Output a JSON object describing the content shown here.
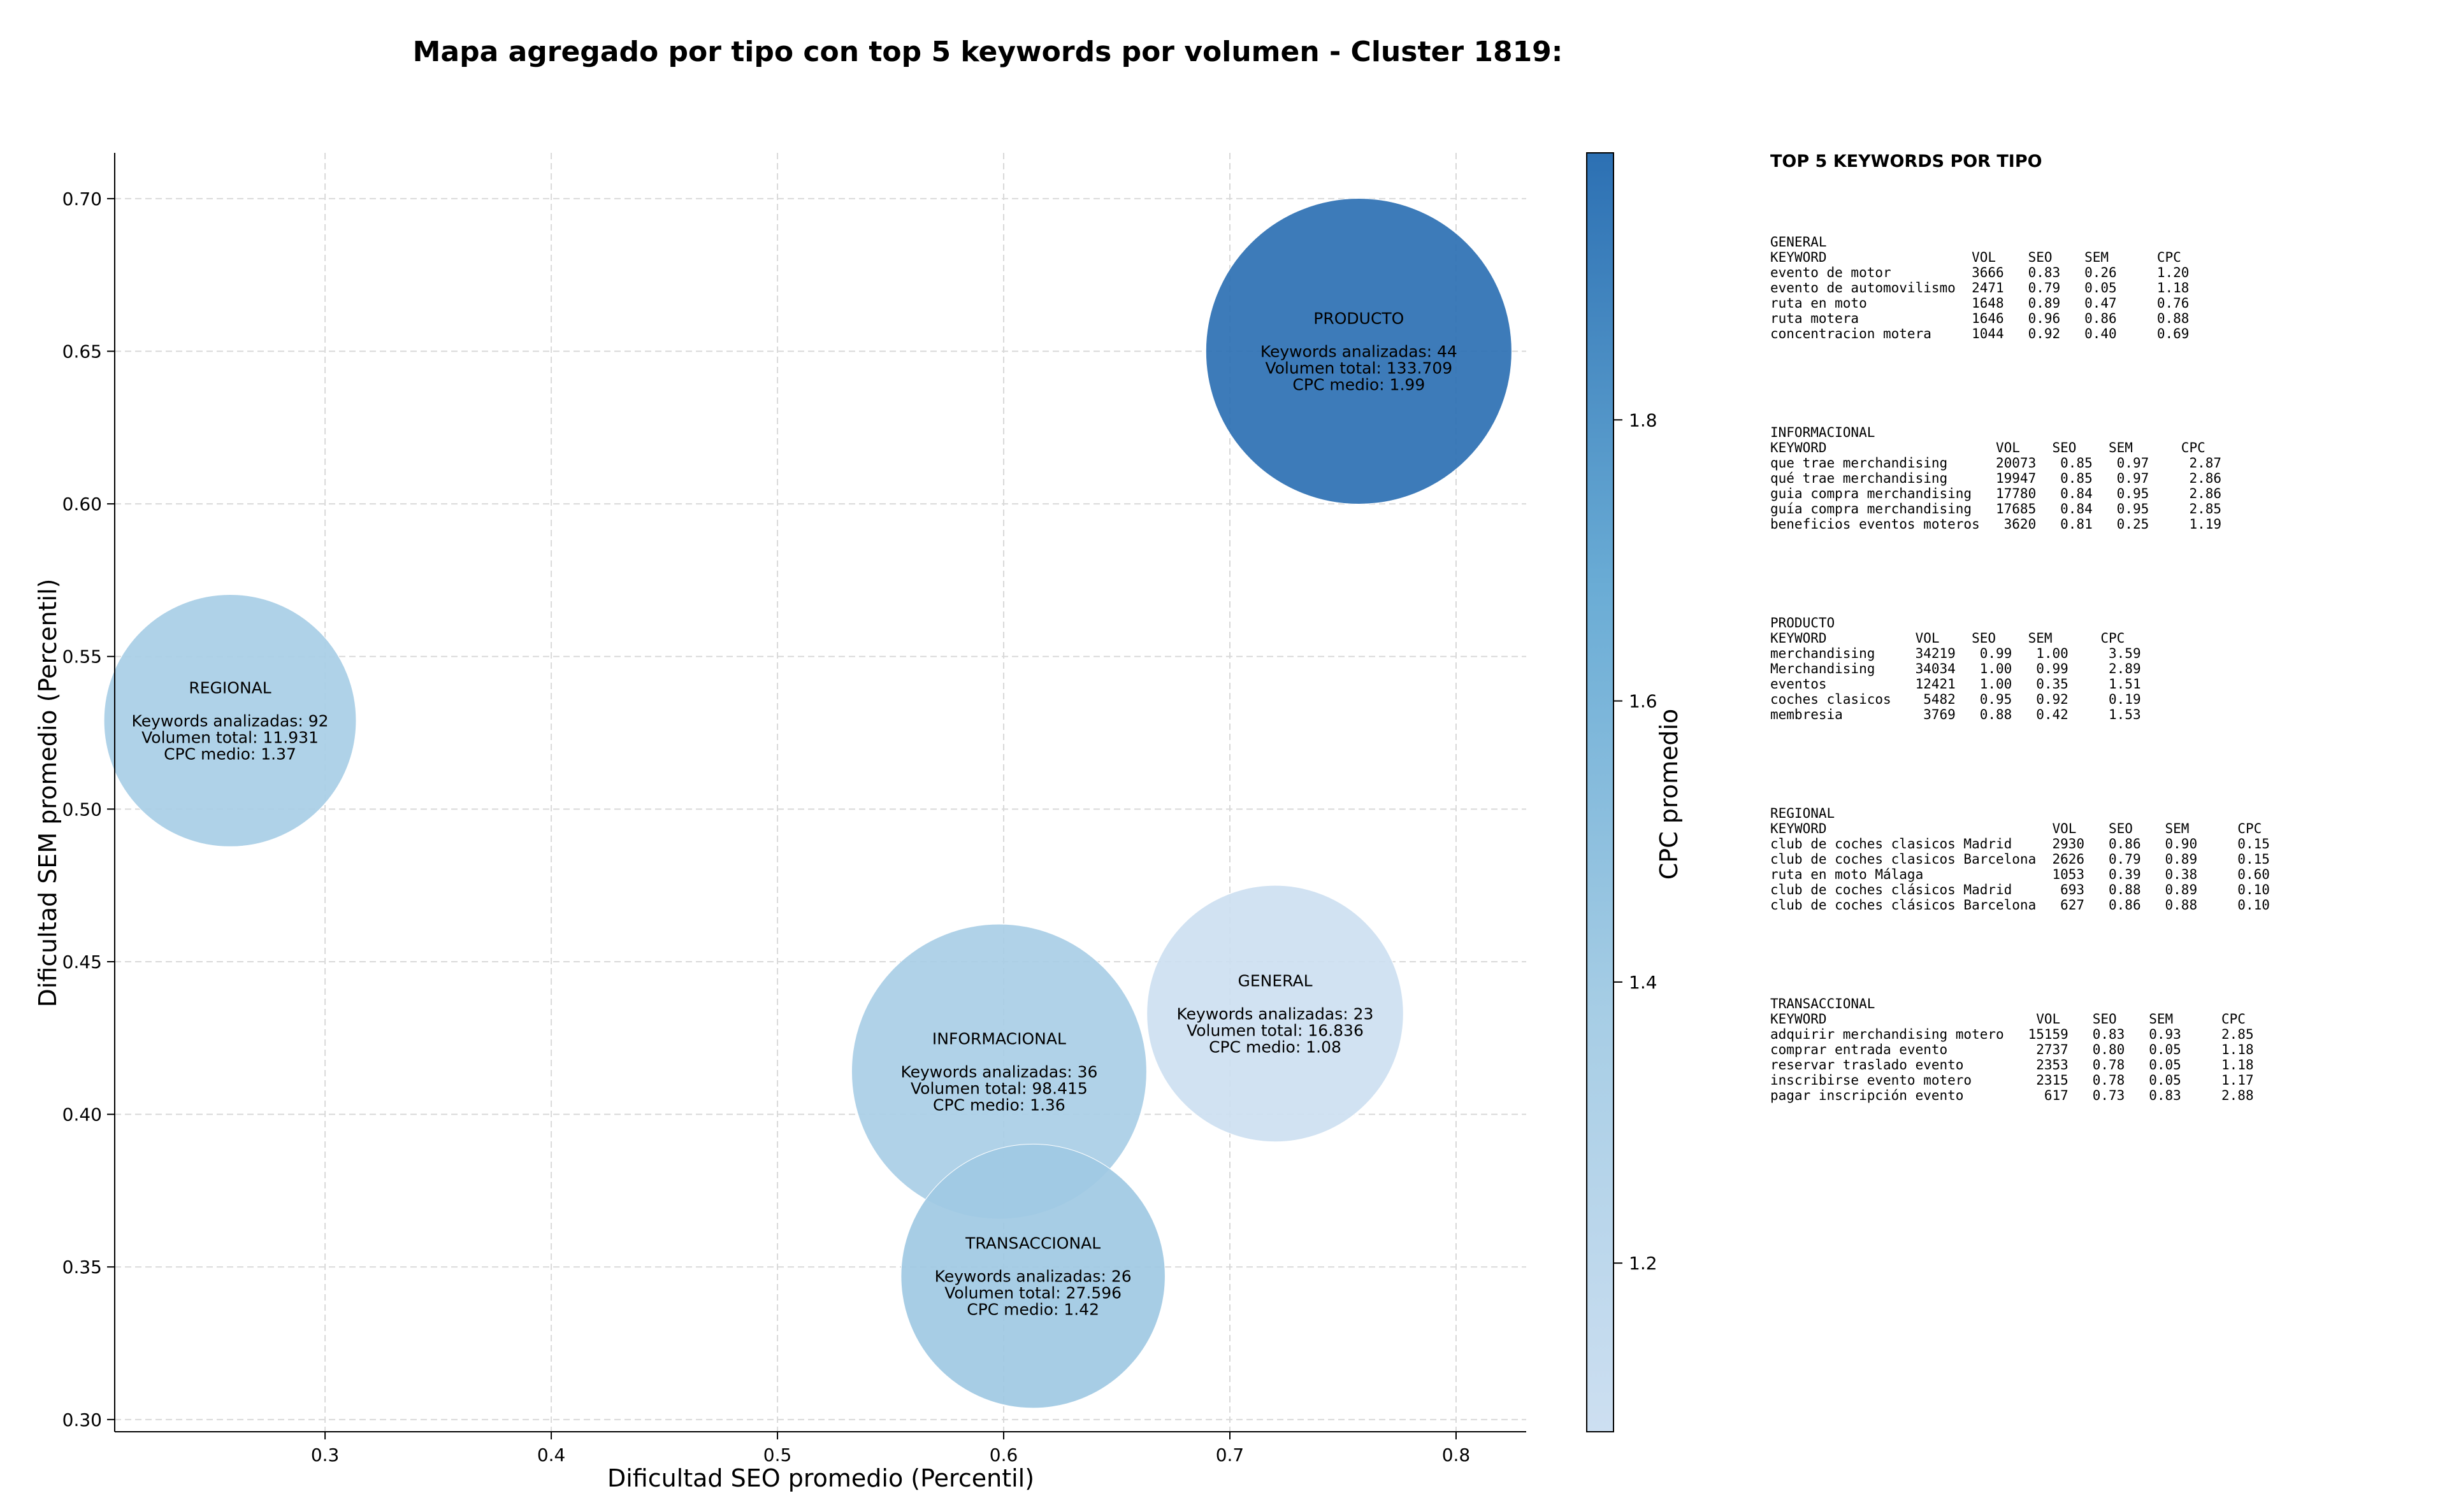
{
  "chart_data": {
    "type": "scatter",
    "title": "Mapa agregado por tipo con top 5 keywords por volumen - Cluster 1819:",
    "xlabel": "Dificultad SEO promedio (Percentil)",
    "ylabel": "Dificultad SEM promedio (Percentil)",
    "colorbar_label": "CPC promedio",
    "xlim": [
      0.207,
      0.831
    ],
    "ylim": [
      0.296,
      0.715
    ],
    "xticks": [
      "0.3",
      "0.4",
      "0.5",
      "0.6",
      "0.7",
      "0.8"
    ],
    "yticks": [
      "0.30",
      "0.35",
      "0.40",
      "0.45",
      "0.50",
      "0.55",
      "0.60",
      "0.65",
      "0.70"
    ],
    "colorbar_range": [
      1.08,
      1.99
    ],
    "colorbar_ticks": [
      "1.2",
      "1.4",
      "1.6",
      "1.8"
    ],
    "grid": true,
    "colormap": [
      "#cddff1",
      "#a6cde5",
      "#6aacd5",
      "#2c70b3"
    ],
    "points": [
      {
        "name": "PRODUCTO",
        "x": 0.757,
        "y": 0.65,
        "volume": 133709,
        "cpc": 1.99,
        "lines": [
          "PRODUCTO",
          "",
          "Keywords analizadas: 44",
          "Volumen total: 133.709",
          "CPC medio: 1.99"
        ]
      },
      {
        "name": "REGIONAL",
        "x": 0.258,
        "y": 0.529,
        "volume": 11931,
        "cpc": 1.37,
        "lines": [
          "REGIONAL",
          "",
          "Keywords analizadas: 92",
          "Volumen total: 11.931",
          "CPC medio: 1.37"
        ]
      },
      {
        "name": "GENERAL",
        "x": 0.72,
        "y": 0.433,
        "volume": 16836,
        "cpc": 1.08,
        "lines": [
          "GENERAL",
          "",
          "Keywords analizadas: 23",
          "Volumen total: 16.836",
          "CPC medio: 1.08"
        ]
      },
      {
        "name": "INFORMACIONAL",
        "x": 0.598,
        "y": 0.414,
        "volume": 98415,
        "cpc": 1.36,
        "lines": [
          "INFORMACIONAL",
          "",
          "Keywords analizadas: 36",
          "Volumen total: 98.415",
          "CPC medio: 1.36"
        ]
      },
      {
        "name": "TRANSACCIONAL",
        "x": 0.613,
        "y": 0.347,
        "volume": 27596,
        "cpc": 1.42,
        "lines": [
          "TRANSACCIONAL",
          "",
          "Keywords analizadas: 26",
          "Volumen total: 27.596",
          "CPC medio: 1.42"
        ]
      }
    ]
  },
  "keywords_panel": {
    "heading": "TOP 5 KEYWORDS POR TIPO",
    "groups": [
      {
        "type": "GENERAL",
        "text": "GENERAL\nKEYWORD                  VOL    SEO    SEM      CPC\nevento de motor          3666   0.83   0.26     1.20\nevento de automovilismo  2471   0.79   0.05     1.18\nruta en moto             1648   0.89   0.47     0.76\nruta motera              1646   0.96   0.86     0.88\nconcentracion motera     1044   0.92   0.40     0.69"
      },
      {
        "type": "INFORMACIONAL",
        "text": "INFORMACIONAL\nKEYWORD                     VOL    SEO    SEM      CPC\nque trae merchandising      20073   0.85   0.97     2.87\nqué trae merchandising      19947   0.85   0.97     2.86\nguia compra merchandising   17780   0.84   0.95     2.86\nguía compra merchandising   17685   0.84   0.95     2.85\nbeneficios eventos moteros   3620   0.81   0.25     1.19"
      },
      {
        "type": "PRODUCTO",
        "text": "PRODUCTO\nKEYWORD           VOL    SEO    SEM      CPC\nmerchandising     34219   0.99   1.00     3.59\nMerchandising     34034   1.00   0.99     2.89\neventos           12421   1.00   0.35     1.51\ncoches clasicos    5482   0.95   0.92     0.19\nmembresia          3769   0.88   0.42     1.53"
      },
      {
        "type": "REGIONAL",
        "text": "REGIONAL\nKEYWORD                            VOL    SEO    SEM      CPC\nclub de coches clasicos Madrid     2930   0.86   0.90     0.15\nclub de coches clasicos Barcelona  2626   0.79   0.89     0.15\nruta en moto Málaga                1053   0.39   0.38     0.60\nclub de coches clásicos Madrid      693   0.88   0.89     0.10\nclub de coches clásicos Barcelona   627   0.86   0.88     0.10"
      },
      {
        "type": "TRANSACCIONAL",
        "text": "TRANSACCIONAL\nKEYWORD                          VOL    SEO    SEM      CPC\nadquirir merchandising motero   15159   0.83   0.93     2.85\ncomprar entrada evento           2737   0.80   0.05     1.18\nreservar traslado evento         2353   0.78   0.05     1.18\ninscribirse evento motero        2315   0.78   0.05     1.17\npagar inscripción evento          617   0.73   0.83     2.88"
      }
    ]
  }
}
